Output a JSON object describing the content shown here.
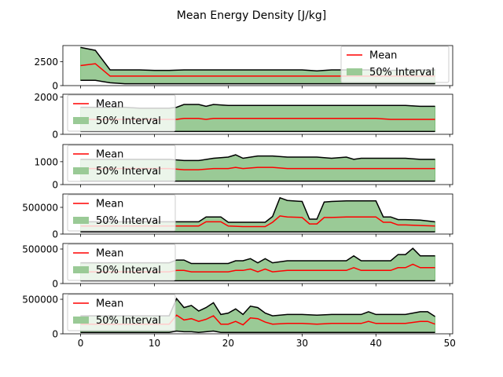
{
  "figure": {
    "title": "Mean Energy Density [J/kg]",
    "legend_mean_label": "Mean",
    "legend_interval_label": "50% Interval",
    "colors": {
      "mean": "#ff0000",
      "band_fill": "#9aca96",
      "band_fill_edge": "#7fbf7b",
      "bound": "#000000",
      "axes": "#000000",
      "background": "#ffffff"
    }
  },
  "chart_data": [
    {
      "type": "area",
      "title": "",
      "xlabel": "",
      "ylabel": "",
      "xlim": [
        -2.4,
        50.4
      ],
      "ylim": [
        0,
        4200
      ],
      "yticks": [
        0,
        2500
      ],
      "ytick_labels": [
        "0",
        "2500"
      ],
      "xticks": [
        0,
        10,
        20,
        30,
        40,
        50
      ],
      "xtick_labels": [],
      "legend_position": "upper-right",
      "x": [
        0,
        2,
        4,
        6,
        8,
        10,
        12,
        14,
        16,
        18,
        20,
        22,
        24,
        26,
        28,
        30,
        32,
        34,
        36,
        38,
        40,
        42,
        44,
        46,
        48
      ],
      "series": [
        {
          "role": "upper",
          "values": [
            4000,
            3700,
            1650,
            1650,
            1650,
            1600,
            1600,
            1650,
            1650,
            1650,
            1650,
            1650,
            1650,
            1650,
            1650,
            1650,
            1550,
            1650,
            1650,
            1650,
            1650,
            1600,
            1650,
            1650,
            1650
          ]
        },
        {
          "role": "mean",
          "values": [
            2100,
            2300,
            1000,
            1000,
            1000,
            1000,
            1000,
            1000,
            1000,
            1000,
            1000,
            1000,
            1000,
            1000,
            1000,
            1000,
            1000,
            1000,
            1000,
            1000,
            1000,
            1000,
            1000,
            1000,
            1000
          ]
        },
        {
          "role": "lower",
          "values": [
            550,
            550,
            300,
            200,
            200,
            200,
            200,
            200,
            200,
            200,
            200,
            200,
            200,
            200,
            200,
            200,
            200,
            200,
            200,
            200,
            200,
            200,
            200,
            200,
            200
          ]
        }
      ]
    },
    {
      "type": "area",
      "title": "",
      "xlabel": "",
      "ylabel": "",
      "xlim": [
        -2.4,
        50.4
      ],
      "ylim": [
        0,
        2150
      ],
      "yticks": [
        0,
        2000
      ],
      "ytick_labels": [
        "0",
        "2000"
      ],
      "xticks": [
        0,
        10,
        20,
        30,
        40,
        50
      ],
      "xtick_labels": [],
      "legend_position": "upper-left",
      "x": [
        0,
        2,
        4,
        6,
        8,
        10,
        12,
        13,
        14,
        16,
        17,
        18,
        20,
        22,
        24,
        26,
        28,
        30,
        32,
        34,
        36,
        38,
        40,
        42,
        44,
        46,
        48
      ],
      "series": [
        {
          "role": "upper",
          "values": [
            1450,
            1450,
            1450,
            1450,
            1400,
            1400,
            1400,
            1450,
            1600,
            1600,
            1500,
            1600,
            1550,
            1550,
            1550,
            1550,
            1550,
            1550,
            1550,
            1550,
            1550,
            1550,
            1550,
            1550,
            1550,
            1500,
            1500
          ]
        },
        {
          "role": "mean",
          "values": [
            800,
            800,
            800,
            800,
            800,
            800,
            800,
            800,
            850,
            850,
            800,
            850,
            850,
            850,
            850,
            850,
            850,
            850,
            850,
            850,
            850,
            850,
            850,
            800,
            800,
            800,
            800
          ]
        },
        {
          "role": "lower",
          "values": [
            150,
            150,
            150,
            150,
            150,
            150,
            150,
            150,
            150,
            150,
            150,
            150,
            150,
            150,
            150,
            150,
            150,
            150,
            150,
            150,
            150,
            150,
            150,
            150,
            150,
            150,
            150
          ]
        }
      ]
    },
    {
      "type": "area",
      "title": "",
      "xlabel": "",
      "ylabel": "",
      "xlim": [
        -2.4,
        50.4
      ],
      "ylim": [
        0,
        1750
      ],
      "yticks": [
        0,
        1000
      ],
      "ytick_labels": [
        "0",
        "1000"
      ],
      "xticks": [
        0,
        10,
        20,
        30,
        40,
        50
      ],
      "xtick_labels": [],
      "legend_position": "upper-left",
      "x": [
        0,
        2,
        4,
        6,
        8,
        10,
        12,
        14,
        16,
        18,
        20,
        21,
        22,
        24,
        26,
        28,
        30,
        32,
        34,
        36,
        37,
        38,
        40,
        42,
        44,
        46,
        48
      ],
      "series": [
        {
          "role": "upper",
          "values": [
            1100,
            1100,
            1100,
            1100,
            1100,
            1100,
            1100,
            1050,
            1050,
            1150,
            1200,
            1300,
            1150,
            1250,
            1250,
            1200,
            1200,
            1200,
            1150,
            1200,
            1100,
            1150,
            1150,
            1150,
            1150,
            1100,
            1100
          ]
        },
        {
          "role": "mean",
          "values": [
            700,
            700,
            700,
            700,
            700,
            700,
            700,
            650,
            650,
            700,
            700,
            750,
            700,
            750,
            750,
            700,
            700,
            700,
            700,
            700,
            700,
            700,
            700,
            700,
            700,
            700,
            700
          ]
        },
        {
          "role": "lower",
          "values": [
            150,
            150,
            150,
            150,
            150,
            150,
            150,
            150,
            150,
            150,
            150,
            150,
            150,
            150,
            150,
            150,
            150,
            150,
            150,
            150,
            150,
            150,
            150,
            150,
            150,
            150,
            150
          ]
        }
      ]
    },
    {
      "type": "area",
      "title": "",
      "xlabel": "",
      "ylabel": "",
      "xlim": [
        -2.4,
        50.4
      ],
      "ylim": [
        0,
        750000
      ],
      "yticks": [
        0,
        500000
      ],
      "ytick_labels": [
        "0",
        "500000"
      ],
      "xticks": [
        0,
        10,
        20,
        30,
        40,
        50
      ],
      "xtick_labels": [],
      "legend_position": "upper-left",
      "x": [
        0,
        2,
        4,
        6,
        8,
        10,
        12,
        14,
        16,
        17,
        19,
        20,
        22,
        24,
        25,
        26,
        27,
        28,
        30,
        31,
        32,
        33,
        34,
        36,
        38,
        40,
        41,
        42,
        43,
        44,
        46,
        48
      ],
      "series": [
        {
          "role": "upper",
          "values": [
            230000,
            230000,
            230000,
            230000,
            230000,
            230000,
            230000,
            230000,
            230000,
            320000,
            320000,
            220000,
            220000,
            220000,
            220000,
            330000,
            680000,
            630000,
            610000,
            280000,
            280000,
            600000,
            610000,
            620000,
            620000,
            620000,
            320000,
            320000,
            270000,
            270000,
            260000,
            230000
          ]
        },
        {
          "role": "mean",
          "values": [
            150000,
            150000,
            150000,
            150000,
            150000,
            150000,
            150000,
            150000,
            150000,
            230000,
            230000,
            150000,
            140000,
            140000,
            140000,
            220000,
            340000,
            320000,
            310000,
            190000,
            190000,
            310000,
            310000,
            320000,
            320000,
            320000,
            220000,
            220000,
            170000,
            170000,
            160000,
            150000
          ]
        },
        {
          "role": "lower",
          "values": [
            40000,
            40000,
            40000,
            40000,
            40000,
            40000,
            40000,
            40000,
            40000,
            40000,
            40000,
            40000,
            40000,
            40000,
            40000,
            40000,
            40000,
            40000,
            40000,
            40000,
            40000,
            40000,
            40000,
            40000,
            40000,
            40000,
            40000,
            40000,
            40000,
            40000,
            40000,
            40000
          ]
        }
      ]
    },
    {
      "type": "area",
      "title": "",
      "xlabel": "",
      "ylabel": "",
      "xlim": [
        -2.4,
        50.4
      ],
      "ylim": [
        0,
        580000
      ],
      "yticks": [
        0,
        500000
      ],
      "ytick_labels": [
        "0",
        "500000"
      ],
      "xticks": [
        0,
        10,
        20,
        30,
        40,
        50
      ],
      "xtick_labels": [],
      "legend_position": "upper-left",
      "x": [
        0,
        2,
        4,
        6,
        8,
        10,
        12,
        13,
        14,
        15,
        16,
        18,
        20,
        21,
        22,
        23,
        24,
        25,
        26,
        28,
        30,
        32,
        34,
        36,
        37,
        38,
        40,
        42,
        43,
        44,
        45,
        46,
        48
      ],
      "series": [
        {
          "role": "upper",
          "values": [
            300000,
            300000,
            300000,
            300000,
            300000,
            300000,
            300000,
            340000,
            340000,
            290000,
            290000,
            290000,
            290000,
            330000,
            330000,
            360000,
            300000,
            360000,
            300000,
            330000,
            330000,
            330000,
            330000,
            330000,
            400000,
            330000,
            330000,
            330000,
            420000,
            420000,
            510000,
            400000,
            400000
          ]
        },
        {
          "role": "mean",
          "values": [
            170000,
            170000,
            170000,
            170000,
            170000,
            170000,
            170000,
            190000,
            190000,
            170000,
            170000,
            170000,
            170000,
            190000,
            190000,
            210000,
            170000,
            210000,
            170000,
            190000,
            190000,
            190000,
            190000,
            190000,
            230000,
            190000,
            190000,
            190000,
            230000,
            230000,
            280000,
            230000,
            230000
          ]
        },
        {
          "role": "lower",
          "values": [
            40000,
            40000,
            40000,
            40000,
            40000,
            40000,
            40000,
            40000,
            40000,
            40000,
            40000,
            40000,
            40000,
            40000,
            40000,
            40000,
            40000,
            40000,
            40000,
            40000,
            40000,
            40000,
            40000,
            40000,
            40000,
            40000,
            40000,
            40000,
            40000,
            40000,
            40000,
            40000,
            40000
          ]
        }
      ]
    },
    {
      "type": "area",
      "title": "",
      "xlabel": "",
      "ylabel": "",
      "xlim": [
        -2.4,
        50.4
      ],
      "ylim": [
        0,
        580000
      ],
      "xticks": [
        0,
        10,
        20,
        30,
        40,
        50
      ],
      "xtick_labels": [
        "0",
        "10",
        "20",
        "30",
        "40",
        "50"
      ],
      "yticks": [
        0,
        500000
      ],
      "ytick_labels": [
        "0",
        "500000"
      ],
      "legend_position": "upper-left",
      "x": [
        0,
        2,
        4,
        6,
        8,
        10,
        12,
        13,
        14,
        15,
        16,
        17,
        18,
        19,
        20,
        21,
        22,
        23,
        24,
        25,
        26,
        28,
        30,
        32,
        34,
        36,
        38,
        39,
        40,
        42,
        44,
        46,
        47,
        48
      ],
      "series": [
        {
          "role": "upper",
          "values": [
            260000,
            260000,
            260000,
            260000,
            260000,
            260000,
            260000,
            510000,
            380000,
            410000,
            330000,
            380000,
            450000,
            280000,
            300000,
            360000,
            280000,
            400000,
            380000,
            300000,
            260000,
            280000,
            280000,
            270000,
            280000,
            280000,
            280000,
            320000,
            280000,
            280000,
            280000,
            320000,
            320000,
            250000
          ]
        },
        {
          "role": "mean",
          "values": [
            140000,
            140000,
            140000,
            140000,
            140000,
            140000,
            140000,
            270000,
            200000,
            220000,
            180000,
            210000,
            260000,
            140000,
            140000,
            180000,
            130000,
            230000,
            220000,
            170000,
            140000,
            150000,
            150000,
            140000,
            150000,
            150000,
            150000,
            180000,
            150000,
            150000,
            150000,
            180000,
            180000,
            140000
          ]
        },
        {
          "role": "lower",
          "values": [
            20000,
            20000,
            20000,
            20000,
            20000,
            20000,
            20000,
            40000,
            30000,
            30000,
            20000,
            30000,
            40000,
            20000,
            20000,
            20000,
            20000,
            20000,
            20000,
            20000,
            20000,
            20000,
            20000,
            20000,
            20000,
            20000,
            20000,
            20000,
            20000,
            20000,
            20000,
            20000,
            20000,
            20000
          ]
        }
      ]
    }
  ]
}
